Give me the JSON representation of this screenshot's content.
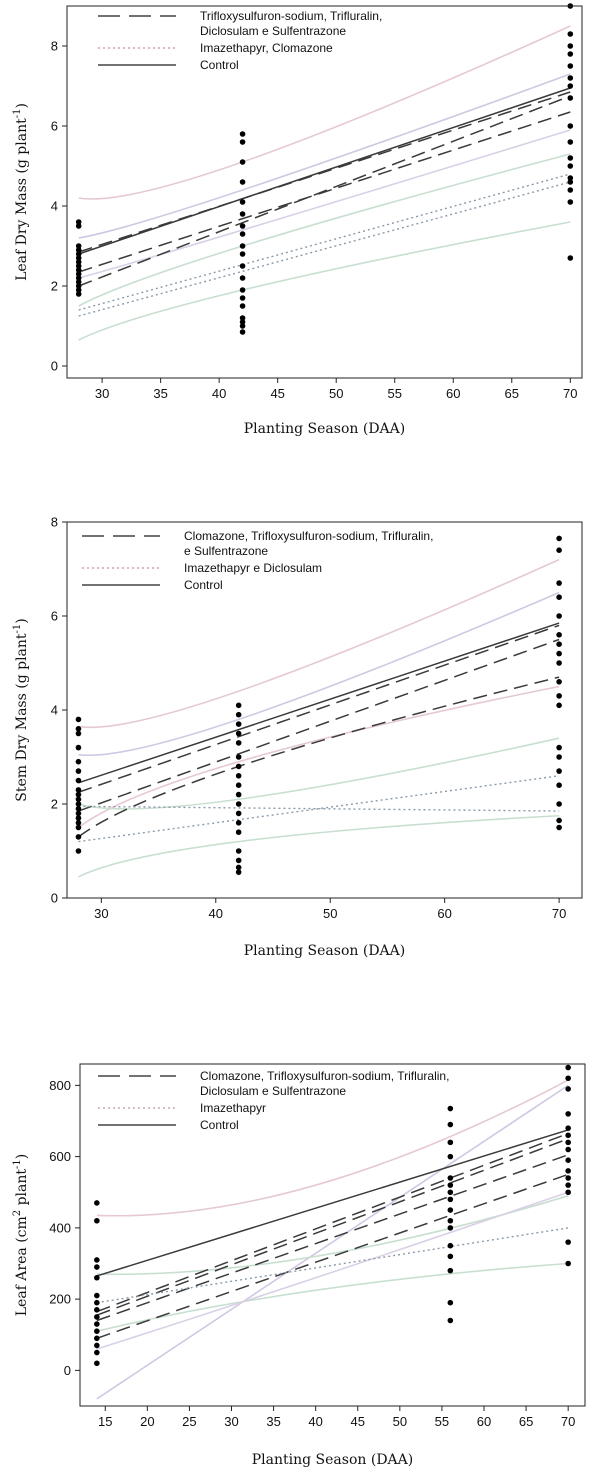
{
  "chart_data": [
    {
      "type": "scatter",
      "xlabel": "Planting Season (DAA)",
      "ylabel": "Leaf Dry Mass (g plant",
      "ylabel_sup": "-1",
      "ylabel_end": ")",
      "xlim": [
        27,
        71
      ],
      "ylim": [
        -0.3,
        9.0
      ],
      "xticks": [
        30,
        35,
        40,
        45,
        50,
        55,
        60,
        65,
        70
      ],
      "yticks": [
        0,
        2,
        4,
        6,
        8
      ],
      "grid": false,
      "legend_position": "top-left",
      "legend": [
        {
          "lines": [
            "Trifloxysulfuron-sodium, Trifluralin,",
            "Diclosulam e Sulfentrazone"
          ],
          "style": "dashed"
        },
        {
          "lines": [
            "Imazethapyr, Clomazone"
          ],
          "style": "dotted"
        },
        {
          "lines": [
            "Control"
          ],
          "style": "solid"
        }
      ],
      "points": [
        [
          28,
          1.8
        ],
        [
          28,
          1.9
        ],
        [
          28,
          2.0
        ],
        [
          28,
          2.1
        ],
        [
          28,
          2.2
        ],
        [
          28,
          2.3
        ],
        [
          28,
          2.4
        ],
        [
          28,
          2.5
        ],
        [
          28,
          2.6
        ],
        [
          28,
          2.7
        ],
        [
          28,
          2.8
        ],
        [
          28,
          2.9
        ],
        [
          28,
          3.0
        ],
        [
          28,
          3.5
        ],
        [
          28,
          3.6
        ],
        [
          42,
          0.85
        ],
        [
          42,
          1.0
        ],
        [
          42,
          1.1
        ],
        [
          42,
          1.2
        ],
        [
          42,
          1.5
        ],
        [
          42,
          1.7
        ],
        [
          42,
          1.9
        ],
        [
          42,
          2.2
        ],
        [
          42,
          2.5
        ],
        [
          42,
          2.8
        ],
        [
          42,
          3.0
        ],
        [
          42,
          3.3
        ],
        [
          42,
          3.5
        ],
        [
          42,
          3.8
        ],
        [
          42,
          4.1
        ],
        [
          42,
          4.6
        ],
        [
          42,
          5.1
        ],
        [
          42,
          5.6
        ],
        [
          42,
          5.8
        ],
        [
          70,
          2.7
        ],
        [
          70,
          4.1
        ],
        [
          70,
          4.4
        ],
        [
          70,
          4.6
        ],
        [
          70,
          4.7
        ],
        [
          70,
          5.0
        ],
        [
          70,
          5.2
        ],
        [
          70,
          5.6
        ],
        [
          70,
          6.0
        ],
        [
          70,
          6.7
        ],
        [
          70,
          7.0
        ],
        [
          70,
          7.2
        ],
        [
          70,
          7.5
        ],
        [
          70,
          7.8
        ],
        [
          70,
          8.0
        ],
        [
          70,
          8.3
        ],
        [
          70,
          9.0
        ]
      ],
      "fits": [
        {
          "style": "solid",
          "color": "#3a3a3a",
          "x": [
            28,
            70
          ],
          "y": [
            2.8,
            6.95
          ]
        },
        {
          "style": "dashed",
          "color": "#3a3a3a",
          "x": [
            28,
            70
          ],
          "y": [
            2.85,
            6.85
          ]
        },
        {
          "style": "dashed",
          "color": "#3a3a3a",
          "x": [
            28,
            70
          ],
          "y": [
            2.35,
            6.35
          ]
        },
        {
          "style": "dashed",
          "color": "#3a3a3a",
          "x": [
            28,
            70
          ],
          "y": [
            2.0,
            6.75
          ]
        },
        {
          "style": "dotted",
          "color": "#8a9aa8",
          "x": [
            28,
            70
          ],
          "y": [
            1.4,
            4.8
          ]
        },
        {
          "style": "dotted",
          "color": "#8a9aa8",
          "x": [
            28,
            70
          ],
          "y": [
            1.25,
            4.6
          ]
        }
      ],
      "bands": [
        {
          "color": "#e6c8d4",
          "x": [
            28,
            42,
            70
          ],
          "y": [
            4.2,
            5.1,
            8.5
          ]
        },
        {
          "color": "#cfc8e2",
          "x": [
            28,
            42,
            70
          ],
          "y": [
            3.2,
            4.4,
            7.3
          ]
        },
        {
          "color": "#c8dfd0",
          "x": [
            28,
            42,
            70
          ],
          "y": [
            1.5,
            3.0,
            5.3
          ]
        },
        {
          "color": "#c8dfd0",
          "x": [
            28,
            42,
            70
          ],
          "y": [
            0.65,
            1.9,
            3.6
          ]
        },
        {
          "color": "#d9d0e6",
          "x": [
            28,
            42,
            70
          ],
          "y": [
            2.2,
            3.4,
            5.9
          ]
        }
      ]
    },
    {
      "type": "scatter",
      "xlabel": "Planting Season (DAA)",
      "ylabel": "Stem Dry Mass (g plant",
      "ylabel_sup": "-1",
      "ylabel_end": ")",
      "xlim": [
        27,
        72
      ],
      "ylim": [
        0,
        8
      ],
      "xticks": [
        30,
        40,
        50,
        60,
        70
      ],
      "yticks": [
        0,
        2,
        4,
        6,
        8
      ],
      "grid": false,
      "legend_position": "top-left",
      "legend": [
        {
          "lines": [
            "Clomazone, Trifloxysulfuron-sodium, Trifluralin,",
            "e Sulfentrazone"
          ],
          "style": "dashed"
        },
        {
          "lines": [
            "Imazethapyr e Diclosulam"
          ],
          "style": "dotted"
        },
        {
          "lines": [
            "Control"
          ],
          "style": "solid"
        }
      ],
      "points": [
        [
          28,
          1.0
        ],
        [
          28,
          1.3
        ],
        [
          28,
          1.5
        ],
        [
          28,
          1.6
        ],
        [
          28,
          1.7
        ],
        [
          28,
          1.8
        ],
        [
          28,
          1.9
        ],
        [
          28,
          2.0
        ],
        [
          28,
          2.1
        ],
        [
          28,
          2.2
        ],
        [
          28,
          2.3
        ],
        [
          28,
          2.5
        ],
        [
          28,
          2.7
        ],
        [
          28,
          2.9
        ],
        [
          28,
          3.2
        ],
        [
          28,
          3.5
        ],
        [
          28,
          3.6
        ],
        [
          28,
          3.8
        ],
        [
          42,
          0.55
        ],
        [
          42,
          0.65
        ],
        [
          42,
          0.8
        ],
        [
          42,
          1.0
        ],
        [
          42,
          1.4
        ],
        [
          42,
          1.6
        ],
        [
          42,
          1.8
        ],
        [
          42,
          2.0
        ],
        [
          42,
          2.2
        ],
        [
          42,
          2.4
        ],
        [
          42,
          2.6
        ],
        [
          42,
          2.8
        ],
        [
          42,
          3.0
        ],
        [
          42,
          3.3
        ],
        [
          42,
          3.5
        ],
        [
          42,
          3.7
        ],
        [
          42,
          3.9
        ],
        [
          42,
          4.1
        ],
        [
          70,
          1.5
        ],
        [
          70,
          1.65
        ],
        [
          70,
          2.0
        ],
        [
          70,
          2.4
        ],
        [
          70,
          2.7
        ],
        [
          70,
          3.0
        ],
        [
          70,
          3.2
        ],
        [
          70,
          4.1
        ],
        [
          70,
          4.3
        ],
        [
          70,
          4.6
        ],
        [
          70,
          5.0
        ],
        [
          70,
          5.2
        ],
        [
          70,
          5.4
        ],
        [
          70,
          5.6
        ],
        [
          70,
          6.0
        ],
        [
          70,
          6.4
        ],
        [
          70,
          6.7
        ],
        [
          70,
          7.4
        ],
        [
          70,
          7.65
        ]
      ],
      "fits": [
        {
          "style": "solid",
          "color": "#3a3a3a",
          "x": [
            28,
            70
          ],
          "y": [
            2.45,
            5.85
          ]
        },
        {
          "style": "dashed",
          "color": "#3a3a3a",
          "x": [
            28,
            70
          ],
          "y": [
            2.25,
            5.8
          ]
        },
        {
          "style": "dashed",
          "color": "#3a3a3a",
          "x": [
            28,
            70
          ],
          "y": [
            1.85,
            5.5
          ]
        },
        {
          "style": "dashed",
          "color": "#3a3a3a",
          "x": [
            28,
            42,
            70
          ],
          "y": [
            1.3,
            2.8,
            4.7
          ]
        },
        {
          "style": "dotted",
          "color": "#8a9aa8",
          "x": [
            28,
            70
          ],
          "y": [
            1.2,
            2.6
          ]
        },
        {
          "style": "dotted",
          "color": "#8a9aa8",
          "x": [
            28,
            70
          ],
          "y": [
            1.95,
            1.85
          ]
        }
      ],
      "bands": [
        {
          "color": "#e6c8d4",
          "x": [
            28,
            42,
            70
          ],
          "y": [
            3.65,
            4.4,
            7.2
          ]
        },
        {
          "color": "#cfc8e2",
          "x": [
            28,
            42,
            70
          ],
          "y": [
            3.05,
            3.8,
            6.5
          ]
        },
        {
          "color": "#e6c8d4",
          "x": [
            28,
            42,
            70
          ],
          "y": [
            1.5,
            2.9,
            4.5
          ]
        },
        {
          "color": "#c8dfd0",
          "x": [
            28,
            42,
            70
          ],
          "y": [
            0.45,
            1.2,
            1.75
          ]
        },
        {
          "color": "#c8dfd0",
          "x": [
            28,
            42,
            70
          ],
          "y": [
            2.0,
            2.1,
            3.4
          ]
        }
      ]
    },
    {
      "type": "scatter",
      "xlabel": "Planting Season (DAA)",
      "ylabel": "Leaf Area (cm",
      "ylabel_sup": "2",
      "ylabel_end": " plant",
      "ylabel_sup2": "-1",
      "ylabel_end2": ")",
      "xlim": [
        12,
        72
      ],
      "ylim": [
        -100,
        860
      ],
      "xticks": [
        15,
        20,
        25,
        30,
        35,
        40,
        45,
        50,
        55,
        60,
        65,
        70
      ],
      "yticks": [
        0,
        200,
        400,
        600,
        800
      ],
      "grid": false,
      "legend_position": "top-left",
      "legend": [
        {
          "lines": [
            "Clomazone, Trifloxysulfuron-sodium, Trifluralin,",
            "Diclosulam e Sulfentrazone"
          ],
          "style": "dashed"
        },
        {
          "lines": [
            "Imazethapyr"
          ],
          "style": "dotted"
        },
        {
          "lines": [
            "Control"
          ],
          "style": "solid"
        }
      ],
      "points": [
        [
          14,
          20
        ],
        [
          14,
          50
        ],
        [
          14,
          70
        ],
        [
          14,
          90
        ],
        [
          14,
          110
        ],
        [
          14,
          130
        ],
        [
          14,
          150
        ],
        [
          14,
          170
        ],
        [
          14,
          190
        ],
        [
          14,
          210
        ],
        [
          14,
          260
        ],
        [
          14,
          290
        ],
        [
          14,
          310
        ],
        [
          14,
          420
        ],
        [
          14,
          470
        ],
        [
          56,
          140
        ],
        [
          56,
          190
        ],
        [
          56,
          280
        ],
        [
          56,
          320
        ],
        [
          56,
          350
        ],
        [
          56,
          400
        ],
        [
          56,
          420
        ],
        [
          56,
          450
        ],
        [
          56,
          480
        ],
        [
          56,
          500
        ],
        [
          56,
          520
        ],
        [
          56,
          540
        ],
        [
          56,
          600
        ],
        [
          56,
          640
        ],
        [
          56,
          690
        ],
        [
          56,
          735
        ],
        [
          70,
          300
        ],
        [
          70,
          360
        ],
        [
          70,
          500
        ],
        [
          70,
          520
        ],
        [
          70,
          540
        ],
        [
          70,
          560
        ],
        [
          70,
          590
        ],
        [
          70,
          620
        ],
        [
          70,
          640
        ],
        [
          70,
          660
        ],
        [
          70,
          680
        ],
        [
          70,
          720
        ],
        [
          70,
          790
        ],
        [
          70,
          820
        ],
        [
          70,
          850
        ]
      ],
      "fits": [
        {
          "style": "solid",
          "color": "#3a3a3a",
          "x": [
            14,
            70
          ],
          "y": [
            265,
            675
          ]
        },
        {
          "style": "dashed",
          "color": "#3a3a3a",
          "x": [
            14,
            70
          ],
          "y": [
            165,
            665
          ]
        },
        {
          "style": "dashed",
          "color": "#3a3a3a",
          "x": [
            14,
            70
          ],
          "y": [
            155,
            650
          ]
        },
        {
          "style": "dashed",
          "color": "#3a3a3a",
          "x": [
            14,
            70
          ],
          "y": [
            140,
            605
          ]
        },
        {
          "style": "dashed",
          "color": "#3a3a3a",
          "x": [
            14,
            70
          ],
          "y": [
            90,
            550
          ]
        },
        {
          "style": "dotted",
          "color": "#8a9aa8",
          "x": [
            14,
            70
          ],
          "y": [
            190,
            400
          ]
        }
      ],
      "bands": [
        {
          "color": "#e6c8d4",
          "x": [
            14,
            40,
            70
          ],
          "y": [
            435,
            520,
            815
          ]
        },
        {
          "color": "#cfc8e2",
          "x": [
            14,
            70
          ],
          "y": [
            -80,
            800
          ]
        },
        {
          "color": "#c8dfd0",
          "x": [
            14,
            40,
            70
          ],
          "y": [
            110,
            225,
            300
          ]
        },
        {
          "color": "#c8dfd0",
          "x": [
            14,
            40,
            70
          ],
          "y": [
            270,
            320,
            490
          ]
        },
        {
          "color": "#d9d0e6",
          "x": [
            14,
            40,
            70
          ],
          "y": [
            60,
            260,
            500
          ]
        }
      ]
    }
  ]
}
